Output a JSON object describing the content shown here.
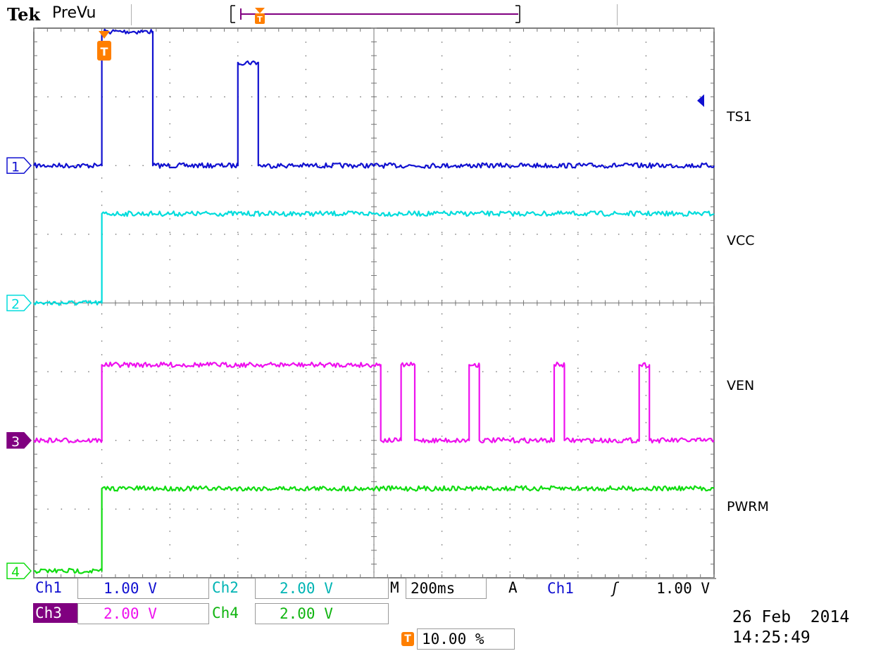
{
  "header": {
    "brand": "Tek",
    "mode": "PreVu"
  },
  "channels": [
    {
      "id": "1",
      "name": "TS1",
      "color": "#1010d0",
      "marker_fill": "#ffffff"
    },
    {
      "id": "2",
      "name": "VCC",
      "color": "#00dcdc",
      "marker_fill": "#ffffff"
    },
    {
      "id": "3",
      "name": "VEN",
      "color": "#ee10ee",
      "marker_fill": "#800080"
    },
    {
      "id": "4",
      "name": "PWRM",
      "color": "#10dc10",
      "marker_fill": "#ffffff"
    }
  ],
  "readouts": {
    "ch1_label": "Ch1",
    "ch1_scale": "1.00 V",
    "ch2_label": "Ch2",
    "ch2_scale": "2.00 V",
    "ch3_label": "Ch3",
    "ch3_scale": "2.00 V",
    "ch4_label": "Ch4",
    "ch4_scale": "2.00 V",
    "time_prefix": "M",
    "time_scale": "200ms",
    "trigger_prefix": "A",
    "trigger_source": "Ch1",
    "trigger_slope": "ʃ",
    "trigger_level": "1.00 V",
    "trigger_position": "10.00 %",
    "date": "26 Feb  2014",
    "time": "14:25:49"
  },
  "chart_data": {
    "type": "line",
    "x_unit": "divisions (200ms/div)",
    "xlim": [
      0,
      10
    ],
    "ylim": [
      0,
      8
    ],
    "grid": true,
    "series": [
      {
        "name": "TS1",
        "x": [
          0,
          1.0,
          1.0,
          1.75,
          1.75,
          3.0,
          3.0,
          3.3,
          3.3,
          10
        ],
        "y": [
          6.0,
          6.0,
          7.95,
          7.95,
          6.0,
          6.0,
          7.5,
          7.5,
          6.0,
          6.0
        ]
      },
      {
        "name": "VCC",
        "x": [
          0,
          1.0,
          1.0,
          10
        ],
        "y": [
          4.0,
          4.0,
          5.3,
          5.3
        ]
      },
      {
        "name": "VEN",
        "x": [
          0,
          1.0,
          1.0,
          5.1,
          5.1,
          5.4,
          5.4,
          5.6,
          5.6,
          6.4,
          6.4,
          6.55,
          6.55,
          7.65,
          7.65,
          7.8,
          7.8,
          8.9,
          8.9,
          9.05,
          9.05,
          10
        ],
        "y": [
          2.0,
          2.0,
          3.1,
          3.1,
          2.0,
          2.0,
          3.1,
          3.1,
          2.0,
          2.0,
          3.1,
          3.1,
          2.0,
          2.0,
          3.1,
          3.1,
          2.0,
          2.0,
          3.1,
          3.1,
          2.0,
          2.0
        ]
      },
      {
        "name": "PWRM",
        "x": [
          0,
          1.0,
          1.0,
          10
        ],
        "y": [
          0.1,
          0.1,
          1.3,
          1.3
        ]
      }
    ],
    "trigger_x": 1.0
  }
}
